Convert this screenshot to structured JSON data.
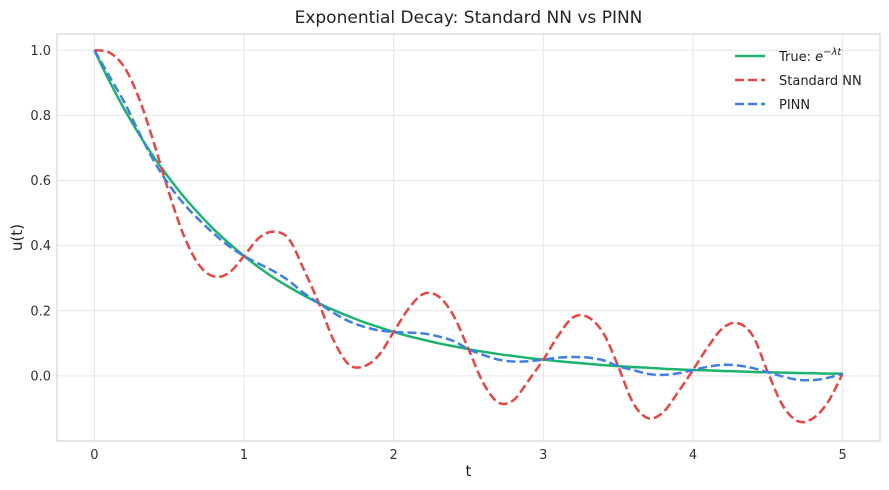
{
  "chart_data": {
    "type": "line",
    "title": "Exponential Decay: Standard NN vs PINN",
    "xlabel": "t",
    "ylabel": "u(t)",
    "xlim": [
      -0.25,
      5.25
    ],
    "ylim": [
      -0.2,
      1.05
    ],
    "xticks": [
      "0",
      "1",
      "2",
      "3",
      "4",
      "5"
    ],
    "yticks": [
      "0.0",
      "0.2",
      "0.4",
      "0.6",
      "0.8",
      "1.0"
    ],
    "grid": true,
    "legend_position": "top-right",
    "series": [
      {
        "name": "True: e^{−λt}",
        "legend_prefix": "True: ",
        "legend_base": "e",
        "legend_sup": "−λt",
        "color": "#1db36f",
        "dash": "solid",
        "x": [
          0,
          0.1,
          0.2,
          0.3,
          0.4,
          0.5,
          0.6,
          0.7,
          0.8,
          0.9,
          1.0,
          1.1,
          1.2,
          1.3,
          1.4,
          1.5,
          1.6,
          1.7,
          1.8,
          1.9,
          2.0,
          2.1,
          2.2,
          2.3,
          2.4,
          2.5,
          2.6,
          2.7,
          2.8,
          2.9,
          3.0,
          3.1,
          3.2,
          3.3,
          3.4,
          3.5,
          3.6,
          3.7,
          3.8,
          3.9,
          4.0,
          4.1,
          4.2,
          4.3,
          4.4,
          4.5,
          4.6,
          4.7,
          4.8,
          4.9,
          5.0
        ],
        "y": [
          1.0,
          0.905,
          0.819,
          0.741,
          0.67,
          0.607,
          0.549,
          0.497,
          0.449,
          0.407,
          0.368,
          0.333,
          0.301,
          0.273,
          0.247,
          0.223,
          0.202,
          0.183,
          0.165,
          0.15,
          0.135,
          0.122,
          0.111,
          0.1,
          0.091,
          0.082,
          0.074,
          0.067,
          0.061,
          0.055,
          0.05,
          0.045,
          0.041,
          0.037,
          0.033,
          0.03,
          0.027,
          0.025,
          0.022,
          0.02,
          0.018,
          0.017,
          0.015,
          0.014,
          0.012,
          0.011,
          0.01,
          0.009,
          0.008,
          0.007,
          0.007
        ]
      },
      {
        "name": "Standard NN",
        "color": "#e84545",
        "dash": "dashed",
        "x": [
          0,
          0.1,
          0.2,
          0.3,
          0.4,
          0.5,
          0.6,
          0.7,
          0.8,
          0.9,
          1.0,
          1.1,
          1.2,
          1.3,
          1.4,
          1.5,
          1.6,
          1.7,
          1.8,
          1.9,
          2.0,
          2.1,
          2.2,
          2.3,
          2.4,
          2.5,
          2.6,
          2.7,
          2.8,
          2.9,
          3.0,
          3.1,
          3.2,
          3.3,
          3.4,
          3.5,
          3.6,
          3.7,
          3.8,
          3.9,
          4.0,
          4.1,
          4.2,
          4.3,
          4.4,
          4.5,
          4.6,
          4.7,
          4.8,
          4.9,
          5.0
        ],
        "y": [
          1.0,
          0.993,
          0.948,
          0.85,
          0.712,
          0.56,
          0.428,
          0.34,
          0.305,
          0.317,
          0.368,
          0.424,
          0.443,
          0.42,
          0.326,
          0.223,
          0.108,
          0.035,
          0.029,
          0.063,
          0.135,
          0.207,
          0.252,
          0.244,
          0.185,
          0.082,
          -0.023,
          -0.082,
          -0.075,
          -0.015,
          0.05,
          0.124,
          0.18,
          0.18,
          0.132,
          0.03,
          -0.083,
          -0.13,
          -0.112,
          -0.05,
          0.018,
          0.089,
          0.147,
          0.162,
          0.123,
          0.011,
          -0.091,
          -0.139,
          -0.131,
          -0.082,
          0.007
        ]
      },
      {
        "name": "PINN",
        "color": "#3f7fe0",
        "dash": "dashed",
        "x": [
          0,
          0.1,
          0.2,
          0.3,
          0.4,
          0.5,
          0.6,
          0.7,
          0.8,
          0.9,
          1.0,
          1.1,
          1.2,
          1.3,
          1.4,
          1.5,
          1.6,
          1.7,
          1.8,
          1.9,
          2.0,
          2.1,
          2.2,
          2.3,
          2.4,
          2.5,
          2.6,
          2.7,
          2.8,
          2.9,
          3.0,
          3.1,
          3.2,
          3.3,
          3.4,
          3.5,
          3.6,
          3.7,
          3.8,
          3.9,
          4.0,
          4.1,
          4.2,
          4.3,
          4.4,
          4.5,
          4.6,
          4.7,
          4.8,
          4.9,
          5.0
        ],
        "y": [
          1.0,
          0.92,
          0.84,
          0.746,
          0.658,
          0.586,
          0.527,
          0.479,
          0.436,
          0.398,
          0.368,
          0.344,
          0.321,
          0.292,
          0.254,
          0.223,
          0.193,
          0.168,
          0.151,
          0.14,
          0.135,
          0.133,
          0.13,
          0.121,
          0.107,
          0.082,
          0.064,
          0.05,
          0.044,
          0.045,
          0.05,
          0.056,
          0.058,
          0.056,
          0.048,
          0.03,
          0.018,
          0.006,
          0.003,
          0.008,
          0.018,
          0.028,
          0.034,
          0.032,
          0.024,
          0.011,
          -0.002,
          -0.012,
          -0.013,
          -0.006,
          0.007
        ]
      }
    ]
  }
}
